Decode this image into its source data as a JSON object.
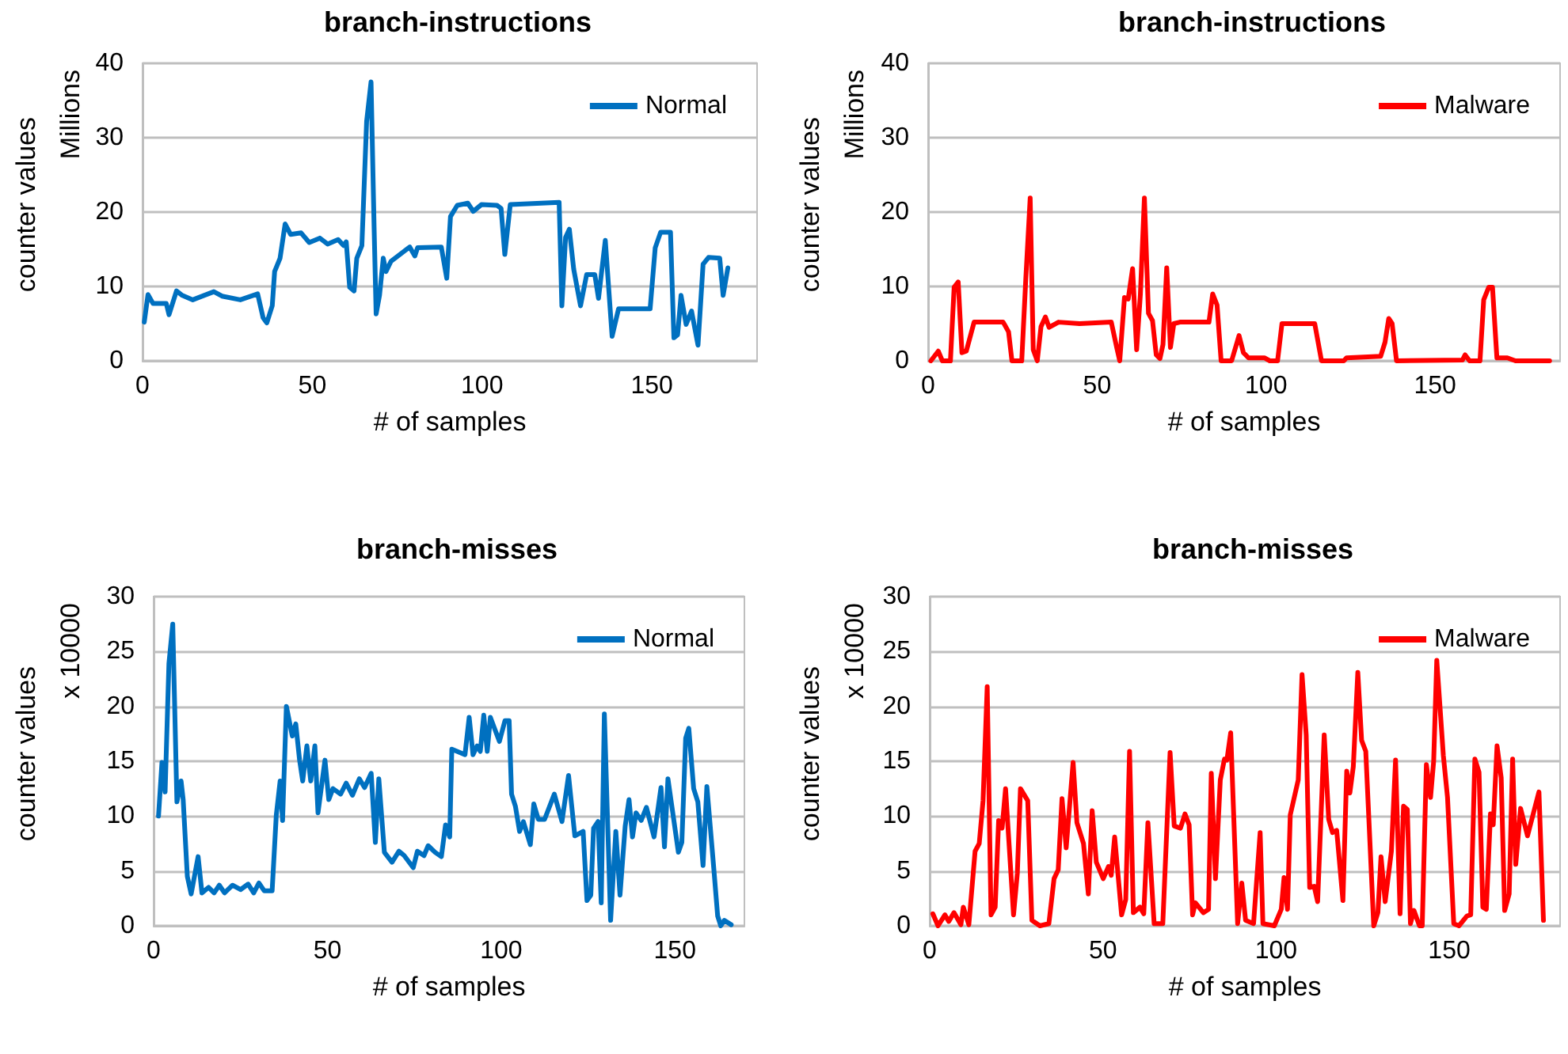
{
  "chart_data": [
    {
      "type": "line",
      "title": "branch-instructions",
      "xlabel": "# of samples",
      "ylabel": "counter values",
      "annotations": [
        "Millions"
      ],
      "xlim": [
        0,
        181
      ],
      "xticks": [
        0,
        50,
        100,
        150
      ],
      "ylim": [
        0,
        40
      ],
      "yticks": [
        0,
        10,
        20,
        30,
        40
      ],
      "grid": "y",
      "legend": "top right",
      "x": [
        0.5,
        1.6,
        3.1,
        7,
        7.8,
        10,
        11.7,
        14.8,
        21,
        23.4,
        28.8,
        33.9,
        35.5,
        36.6,
        38.2,
        38.9,
        40.5,
        42,
        43.6,
        46.7,
        49.1,
        52.2,
        54.5,
        57.6,
        59.2,
        60,
        61,
        62.3,
        63.1,
        64.6,
        66,
        67.3,
        68.2,
        68.8,
        69.8,
        70.9,
        71.7,
        73.2,
        78.7,
        80.2,
        81,
        88,
        89.6,
        90.7,
        92.7,
        95.8,
        97.4,
        99.8,
        104.4,
        105.6,
        106.7,
        108.3,
        122.7,
        123.5,
        124.6,
        125.7,
        127,
        129,
        130.8,
        133.2,
        134.3,
        136.3,
        138.3,
        140.2,
        149.5,
        151,
        152.6,
        155.5,
        156.5,
        157.6,
        158.6,
        160.1,
        161.7,
        163.6,
        165.1,
        166.7,
        170,
        171,
        172.4
      ],
      "series": [
        {
          "name": "Normal",
          "color": "#0070c0",
          "values": [
            5.2,
            8.9,
            7.7,
            7.7,
            6.2,
            9.4,
            8.8,
            8.2,
            9.3,
            8.7,
            8.2,
            9.0,
            5.8,
            5.1,
            7.4,
            12.0,
            13.8,
            18.4,
            17.0,
            17.2,
            15.9,
            16.5,
            15.7,
            16.3,
            15.5,
            16.0,
            9.9,
            9.4,
            13.8,
            15.5,
            32.2,
            37.5,
            18.0,
            6.3,
            8.8,
            13.8,
            12.0,
            13.4,
            15.3,
            14.1,
            15.2,
            15.3,
            11.1,
            19.4,
            20.9,
            21.2,
            20.1,
            21.0,
            20.9,
            20.5,
            14.3,
            21.0,
            21.3,
            7.4,
            16.6,
            17.7,
            12.3,
            7.4,
            11.6,
            11.6,
            8.4,
            16.2,
            3.3,
            7.0,
            7.0,
            15.2,
            17.3,
            17.3,
            3.1,
            3.5,
            8.8,
            4.9,
            6.7,
            2.1,
            13.0,
            13.9,
            13.8,
            8.8,
            12.5
          ]
        }
      ]
    },
    {
      "type": "line",
      "title": "branch-instructions",
      "xlabel": "# of samples",
      "ylabel": "counter values",
      "annotations": [
        "Millions"
      ],
      "xlim": [
        0,
        187
      ],
      "xticks": [
        0,
        50,
        100,
        150
      ],
      "ylim": [
        0,
        40
      ],
      "yticks": [
        0,
        10,
        20,
        30,
        40
      ],
      "grid": "y",
      "legend": "top right",
      "x": [
        0.8,
        3,
        4.2,
        6.6,
        7.7,
        8.9,
        10,
        11.3,
        13.6,
        22.2,
        23.8,
        24.8,
        27.7,
        28.9,
        30.2,
        31.1,
        32.3,
        33.4,
        34.7,
        35.8,
        38.6,
        44.8,
        54.2,
        55.8,
        56.7,
        58.1,
        59.2,
        60.5,
        61.7,
        62.8,
        64,
        65.2,
        66.4,
        67.5,
        68.6,
        69.5,
        70.6,
        71.7,
        72.7,
        74.5,
        83.1,
        84.2,
        85.5,
        86.7,
        89.8,
        92,
        93.3,
        94.8,
        99.5,
        101.1,
        103.4,
        104.7,
        114.4,
        116.4,
        123,
        123.8,
        133.9,
        135.2,
        136.3,
        137.3,
        138.6,
        158.1,
        158.9,
        160.2,
        163.3,
        164.4,
        165.9,
        167,
        168.3,
        171.4,
        173.8,
        183.9
      ],
      "series": [
        {
          "name": "Malware",
          "color": "#ff0000",
          "values": [
            0,
            1.3,
            0,
            0,
            9.9,
            10.6,
            1.1,
            1.3,
            5.2,
            5.2,
            3.9,
            0,
            0,
            11,
            21.9,
            1.5,
            0,
            4.6,
            5.9,
            4.5,
            5.2,
            5.0,
            5.2,
            1.8,
            0,
            8.5,
            8.3,
            12.4,
            1.5,
            8.9,
            21.9,
            6.4,
            5.4,
            0.8,
            0.3,
            2.2,
            12.5,
            1.8,
            5,
            5.2,
            5.2,
            9.0,
            7.5,
            0,
            0,
            3.4,
            1.1,
            0.4,
            0.4,
            0,
            0,
            5,
            5,
            0,
            0,
            0.4,
            0.6,
            2.5,
            5.7,
            5.0,
            0,
            0.1,
            0.8,
            0,
            0,
            8.2,
            9.9,
            9.9,
            0.4,
            0.4,
            0,
            0
          ]
        }
      ]
    },
    {
      "type": "line",
      "title": "branch-misses",
      "xlabel": "# of samples",
      "ylabel": "counter values",
      "annotations": [
        "x 10000"
      ],
      "xlim": [
        0,
        170
      ],
      "xticks": [
        0,
        50,
        100,
        150
      ],
      "ylim": [
        0,
        30
      ],
      "yticks": [
        0,
        5,
        10,
        15,
        20,
        25,
        30
      ],
      "grid": "y",
      "legend": "top right",
      "x": [
        1.4,
        2.4,
        3.3,
        4.4,
        5.5,
        6.7,
        7.9,
        8.5,
        9.7,
        10.8,
        12.8,
        13.9,
        15.8,
        17.4,
        18.9,
        20.4,
        22.7,
        25,
        27.2,
        28.8,
        30.3,
        31.8,
        34.1,
        35.3,
        36.4,
        37.1,
        38.2,
        39.9,
        40.9,
        42,
        42.9,
        44.1,
        45.2,
        46.4,
        47.3,
        49.3,
        50.4,
        51.6,
        53.8,
        55.4,
        57.2,
        59.2,
        60.7,
        62.6,
        63.8,
        64.8,
        66.4,
        68.6,
        70.6,
        72.1,
        74.7,
        75.9,
        77.8,
        79,
        81,
        82.8,
        84,
        85.2,
        85.8,
        89.6,
        90.8,
        91.9,
        93.1,
        94,
        95,
        96,
        96.9,
        99.5,
        101.1,
        102.3,
        103,
        104.1,
        105.3,
        106.4,
        108.4,
        109.4,
        110.7,
        112.5,
        115.3,
        117.5,
        119.4,
        121.2,
        123.6,
        124.7,
        125.8,
        126.6,
        127.9,
        128.8,
        129.7,
        131.5,
        133,
        134.2,
        135.7,
        136.8,
        137.8,
        138.8,
        140.3,
        141.8,
        144,
        146,
        147,
        148,
        151,
        152,
        153.1,
        154,
        155.4,
        156.6,
        158.1,
        159.2,
        161.2,
        162.3,
        163.2,
        164.2,
        166.2
      ],
      "series": [
        {
          "name": "Normal",
          "color": "#0070c0",
          "values": [
            10,
            14.9,
            12.2,
            23.9,
            27.5,
            11.3,
            13.2,
            11.5,
            4.5,
            2.9,
            6.3,
            3.0,
            3.5,
            3.0,
            3.7,
            3.0,
            3.7,
            3.3,
            3.8,
            3.0,
            3.9,
            3.2,
            3.2,
            10.1,
            13.2,
            9.6,
            20.0,
            17.3,
            18.4,
            15.1,
            13.2,
            16.4,
            13.2,
            16.4,
            10.3,
            15.1,
            11.5,
            12.5,
            12.0,
            13.0,
            11.9,
            13.4,
            12.6,
            13.9,
            7.6,
            13.4,
            6.7,
            5.8,
            6.8,
            6.4,
            5.3,
            6.8,
            6.4,
            7.3,
            6.7,
            6.3,
            9.2,
            8.1,
            16.1,
            15.6,
            19.0,
            15.6,
            16.4,
            15.9,
            19.2,
            15.9,
            19.0,
            16.8,
            18.7,
            18.7,
            12.0,
            10.9,
            8.6,
            9.5,
            7.4,
            11.1,
            9.7,
            9.7,
            12.0,
            9.5,
            13.7,
            8.2,
            8.6,
            2.3,
            2.8,
            8.9,
            9.5,
            2.1,
            19.3,
            0.5,
            8.6,
            2.8,
            9.1,
            11.5,
            8.1,
            10.3,
            9.6,
            10.8,
            8.1,
            12.6,
            7.2,
            13.4,
            6.7,
            7.6,
            17.1,
            18.0,
            12.5,
            11.3,
            5.5,
            12.7,
            5.2,
            0.9,
            0,
            0.5,
            0.1
          ]
        }
      ]
    },
    {
      "type": "line",
      "title": "branch-misses",
      "xlabel": "# of samples",
      "ylabel": "counter values",
      "annotations": [
        "x 10000"
      ],
      "xlim": [
        0,
        182
      ],
      "xticks": [
        0,
        50,
        100,
        150
      ],
      "ylim": [
        0,
        30
      ],
      "yticks": [
        0,
        5,
        10,
        15,
        20,
        25,
        30
      ],
      "grid": "y",
      "legend": "top right",
      "x": [
        0.9,
        2.4,
        4.4,
        5.5,
        7,
        9,
        9.7,
        11.3,
        13.1,
        14.3,
        15.4,
        16.6,
        17.7,
        18.9,
        19.9,
        20.9,
        21.9,
        24.2,
        25.3,
        26.2,
        28.3,
        29.5,
        31.8,
        34.4,
        35.9,
        37.1,
        38.2,
        39.4,
        41.4,
        42.5,
        44.4,
        45.8,
        46.9,
        48.1,
        50.1,
        51.6,
        52.4,
        53.4,
        55.4,
        56.6,
        57.7,
        58.8,
        60.7,
        61.8,
        63,
        64.8,
        67.3,
        69.4,
        70.6,
        72.4,
        73.7,
        74.9,
        75.9,
        76.7,
        79,
        80.5,
        81.3,
        82.5,
        83.9,
        85.1,
        85.8,
        86.9,
        88.9,
        90.1,
        91.2,
        93.5,
        95.4,
        96.2,
        99.5,
        101.5,
        102.3,
        103.3,
        104.1,
        106.4,
        107.5,
        108.7,
        109.7,
        111,
        112,
        113.9,
        115.2,
        116.3,
        117.5,
        119.3,
        120.4,
        121.3,
        122.3,
        123.6,
        124.7,
        125.9,
        128.2,
        129.4,
        130.3,
        131.5,
        133.3,
        134.5,
        135.8,
        136.8,
        137.9,
        138.8,
        139.8,
        141.4,
        142.2,
        143.4,
        144.6,
        145.5,
        146.4,
        148.3,
        149.5,
        151.3,
        152.8,
        155.1,
        156.2,
        157.4,
        158.6,
        159.7,
        160.7,
        161.9,
        162.7,
        163.8,
        165,
        166,
        167.3,
        168.3,
        169.2,
        170.6,
        172.6,
        175.9,
        177.2
      ],
      "series": [
        {
          "name": "Malware",
          "color": "#ff0000",
          "values": [
            1.1,
            0,
            1.0,
            0.4,
            1.2,
            0.1,
            1.7,
            0.1,
            6.8,
            7.5,
            11.4,
            21.8,
            1.0,
            1.7,
            9.6,
            8.9,
            12.5,
            1.0,
            4.8,
            12.5,
            11.4,
            0.5,
            0,
            0.2,
            4.3,
            5.1,
            11.6,
            7.1,
            14.9,
            9.4,
            7.5,
            2.9,
            10.5,
            5.8,
            4.3,
            5.4,
            4.6,
            8.1,
            1.0,
            2.4,
            15.9,
            1.2,
            1.7,
            1.1,
            9.4,
            0.2,
            0.2,
            15.8,
            9.1,
            8.9,
            10.2,
            9.2,
            1.0,
            2.1,
            1.2,
            1.5,
            13.9,
            4.3,
            13.3,
            15.2,
            15.1,
            17.6,
            0.2,
            3.9,
            0.5,
            0.2,
            8.5,
            0.2,
            0,
            1.5,
            4.4,
            1.5,
            10.1,
            13.3,
            22.9,
            17.4,
            3.5,
            3.6,
            2.2,
            17.4,
            9.7,
            8.5,
            8.7,
            2.3,
            14.1,
            12.1,
            14.5,
            23.1,
            16.9,
            15.9,
            0,
            1.2,
            6.3,
            2.2,
            6.8,
            15.1,
            1.1,
            10.9,
            10.6,
            0.2,
            1.4,
            0,
            0,
            14.7,
            11.7,
            15,
            24.2,
            15.5,
            11.7,
            0.2,
            0,
            0.9,
            1.0,
            15.2,
            14.0,
            1.7,
            1.5,
            10.2,
            9.2,
            16.4,
            13.5,
            1.4,
            2.9,
            15.2,
            5.6,
            10.7,
            8.2,
            12.2,
            0.5
          ]
        }
      ]
    }
  ]
}
